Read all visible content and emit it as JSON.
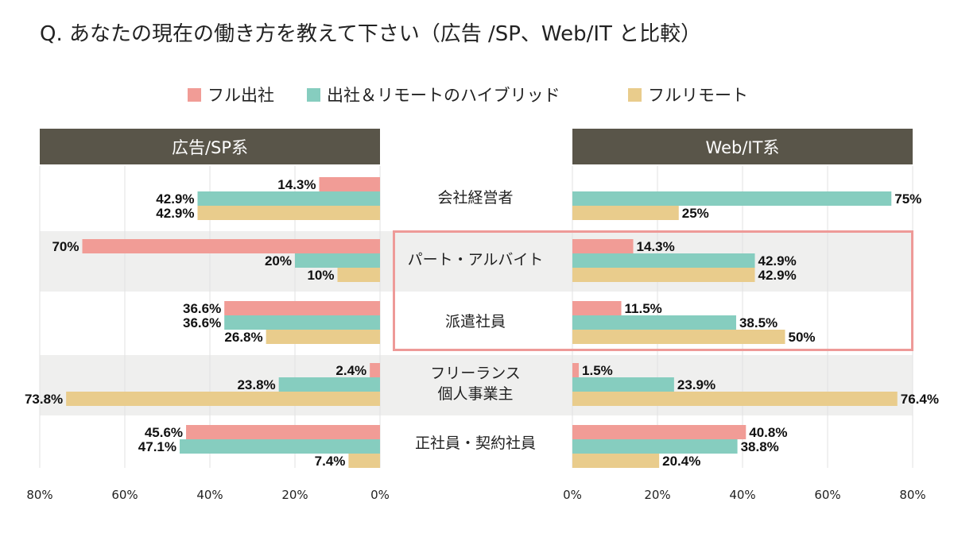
{
  "title": "Q. あなたの現在の働き方を教えて下さい（広告 /SP、Web/IT と比較）",
  "legend": [
    {
      "label": "フル出社",
      "color": "#f19c96"
    },
    {
      "label": "出社＆リモートのハイブリッド",
      "color": "#86cdbf"
    },
    {
      "label": "フルリモート",
      "color": "#e9cc8c"
    }
  ],
  "panels": {
    "left_header": "広告/SP系",
    "right_header": "Web/IT系"
  },
  "categories": [
    {
      "line1": "会社経営者",
      "line2": ""
    },
    {
      "line1": "パート・アルバイト",
      "line2": ""
    },
    {
      "line1": "派遣社員",
      "line2": ""
    },
    {
      "line1": "フリーランス",
      "line2": "個人事業主"
    },
    {
      "line1": "正社員・契約社員",
      "line2": ""
    }
  ],
  "chart_data": [
    {
      "type": "bar",
      "orientation": "horizontal",
      "direction": "right-to-left",
      "title": "広告/SP系",
      "categories": [
        "会社経営者",
        "パート・アルバイト",
        "派遣社員",
        "フリーランス 個人事業主",
        "正社員・契約社員"
      ],
      "series": [
        {
          "name": "フル出社",
          "values": [
            14.3,
            70,
            36.6,
            2.4,
            45.6
          ],
          "labels": [
            "14.3%",
            "70%",
            "36.6%",
            "2.4%",
            "45.6%"
          ]
        },
        {
          "name": "出社＆リモートのハイブリッド",
          "values": [
            42.9,
            20,
            36.6,
            23.8,
            47.1
          ],
          "labels": [
            "42.9%",
            "20%",
            "36.6%",
            "23.8%",
            "47.1%"
          ]
        },
        {
          "name": "フルリモート",
          "values": [
            42.9,
            10,
            26.8,
            73.8,
            7.4
          ],
          "labels": [
            "42.9%",
            "10%",
            "26.8%",
            "73.8%",
            "7.4%"
          ]
        }
      ],
      "xlim": [
        0,
        80
      ],
      "ticks": [
        "80%",
        "60%",
        "40%",
        "20%",
        "0%"
      ],
      "tick_values": [
        80,
        60,
        40,
        20,
        0
      ],
      "grid": true
    },
    {
      "type": "bar",
      "orientation": "horizontal",
      "direction": "left-to-right",
      "title": "Web/IT系",
      "categories": [
        "会社経営者",
        "パート・アルバイト",
        "派遣社員",
        "フリーランス 個人事業主",
        "正社員・契約社員"
      ],
      "series": [
        {
          "name": "フル出社",
          "values": [
            null,
            14.3,
            11.5,
            1.5,
            40.8
          ],
          "labels": [
            "",
            "14.3%",
            "11.5%",
            "1.5%",
            "40.8%"
          ]
        },
        {
          "name": "出社＆リモートのハイブリッド",
          "values": [
            75,
            42.9,
            38.5,
            23.9,
            38.8
          ],
          "labels": [
            "75%",
            "42.9%",
            "38.5%",
            "23.9%",
            "38.8%"
          ]
        },
        {
          "name": "フルリモート",
          "values": [
            25,
            42.9,
            50,
            76.4,
            20.4
          ],
          "labels": [
            "25%",
            "42.9%",
            "50%",
            "76.4%",
            "20.4%"
          ]
        }
      ],
      "xlim": [
        0,
        80
      ],
      "ticks": [
        "0%",
        "20%",
        "40%",
        "60%",
        "80%"
      ],
      "tick_values": [
        0,
        20,
        40,
        60,
        80
      ],
      "grid": true
    }
  ]
}
